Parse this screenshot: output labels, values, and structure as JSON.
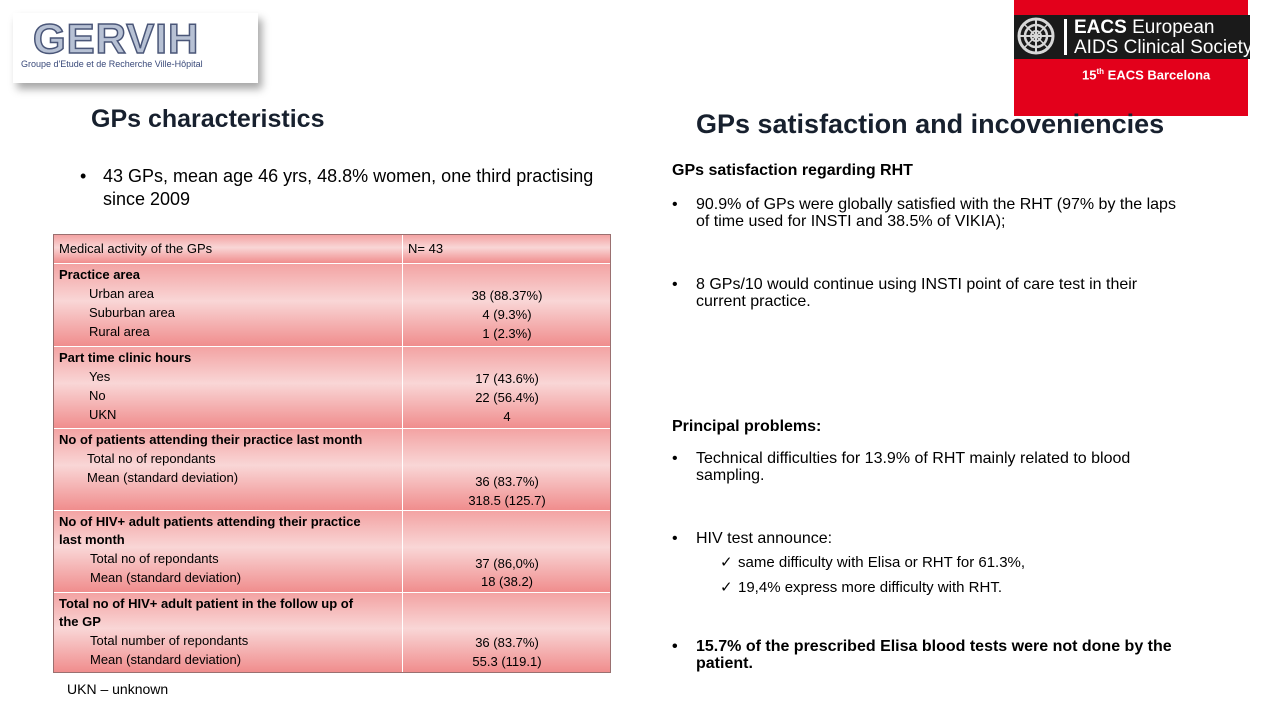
{
  "logo_gervih": {
    "name": "GERVIH",
    "subtitle": "Groupe d'Etude et de Recherche Ville-Hôpital"
  },
  "logo_eacs": {
    "line1_bold": "EACS",
    "line1_rest": " European",
    "line2": "AIDS Clinical Society",
    "event_num": "15",
    "event_sup": "th",
    "event_text": " EACS Barcelona",
    "color": "#e3001b"
  },
  "left": {
    "heading": "GPs characteristics",
    "bullet": "43 GPs, mean age 46 yrs, 48.8% women, one third practising since 2009",
    "table": {
      "header": {
        "col1": "Medical activity of the GPs",
        "col2": "N= 43"
      },
      "practice_area": {
        "title": "Practice area",
        "labels": [
          "Urban area",
          "Suburban area",
          "Rural area"
        ],
        "values": [
          "38 (88.37%)",
          "4 (9.3%)",
          "1 (2.3%)"
        ]
      },
      "part_time": {
        "title": "Part time clinic hours",
        "labels": [
          "Yes",
          "No",
          "UKN"
        ],
        "values": [
          "17 (43.6%)",
          "22 (56.4%)",
          "4"
        ]
      },
      "patients": {
        "title": "No of patients attending their practice last month",
        "labels": [
          "Total no of repondants",
          "Mean (standard deviation)"
        ],
        "values": [
          "36 (83.7%)",
          "318.5 (125.7)"
        ]
      },
      "hiv_patients": {
        "title1": "No of HIV+ adult patients attending their practice",
        "title2": "last month",
        "labels": [
          "Total no of repondants",
          "Mean (standard deviation)"
        ],
        "values": [
          "37 (86,0%)",
          "18 (38.2)"
        ]
      },
      "followup": {
        "title1": "Total no of HIV+ adult patient in the follow up of",
        "title2": "the GP",
        "labels": [
          "Total number of repondants",
          "Mean (standard deviation)"
        ],
        "values": [
          "36 (83.7%)",
          "55.3 (119.1)"
        ]
      }
    },
    "footnote": "UKN – unknown"
  },
  "right": {
    "heading": "GPs satisfaction and incoveniencies",
    "satisfaction_title": "GPs satisfaction regarding RHT",
    "satisfaction_bullets": [
      "90.9% of GPs were globally satisfied with the RHT (97% by the laps of time used for INSTI and 38.5% of VIKIA);",
      "8 GPs/10 would continue using INSTI point of care test in their current practice."
    ],
    "problems_title": "Principal problems:",
    "problem_technical": "Technical difficulties for 13.9% of RHT mainly related to blood sampling.",
    "problem_announce": "HIV test announce:",
    "announce_checks": [
      "same difficulty with Elisa or RHT for 61.3%,",
      "19,4% express more difficulty with RHT."
    ],
    "problem_elisa": "15.7% of the prescribed Elisa blood tests were not done by the patient."
  }
}
